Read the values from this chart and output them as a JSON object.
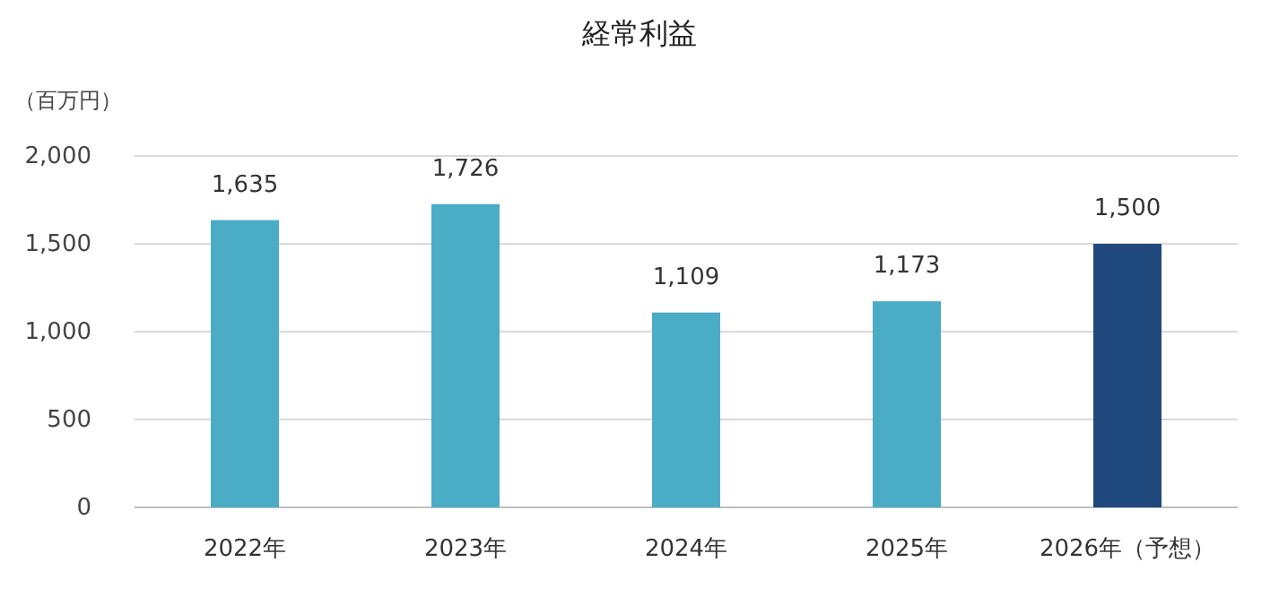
{
  "chart_data": {
    "type": "bar",
    "title": "経常利益",
    "ylabel": "（百万円）",
    "categories": [
      "2022年",
      "2023年",
      "2024年",
      "2025年",
      "2026年（予想）"
    ],
    "values": [
      1635,
      1726,
      1109,
      1173,
      1500
    ],
    "colors": [
      "#4bacc6",
      "#4bacc6",
      "#4bacc6",
      "#4bacc6",
      "#1f497d"
    ],
    "value_labels": [
      "1,635",
      "1,726",
      "1,109",
      "1,173",
      "1,500"
    ],
    "ylim": [
      0,
      2000
    ],
    "yticks": [
      {
        "value": 0,
        "label": "0"
      },
      {
        "value": 500,
        "label": "500"
      },
      {
        "value": 1000,
        "label": "1,000"
      },
      {
        "value": 1500,
        "label": "1,500"
      },
      {
        "value": 2000,
        "label": "2,000"
      }
    ],
    "grid": "y"
  }
}
